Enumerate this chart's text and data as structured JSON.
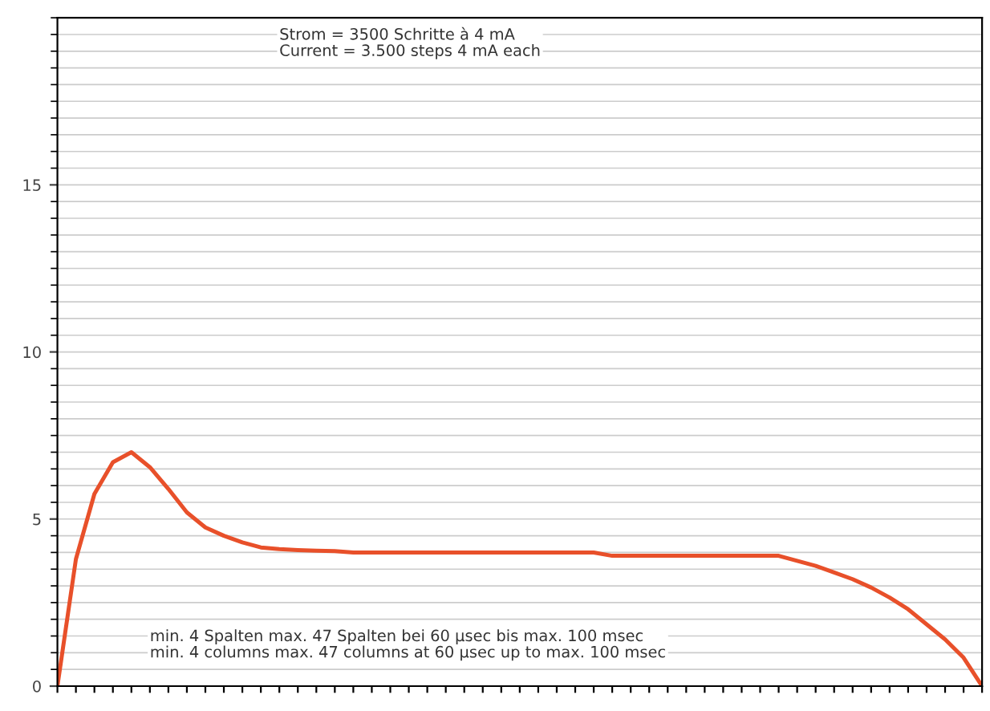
{
  "chart_data": {
    "type": "line",
    "categories": [
      null,
      null,
      null,
      null,
      null,
      null,
      null,
      null,
      null,
      null,
      null,
      null,
      null,
      null,
      null,
      null,
      null,
      null,
      null,
      null,
      null,
      null,
      null,
      null,
      null,
      null,
      null,
      null,
      null,
      null,
      null,
      null,
      null,
      null,
      null,
      null,
      null,
      null,
      null,
      null,
      null,
      null,
      null,
      null,
      null,
      null,
      null,
      null,
      null,
      null,
      null
    ],
    "series": [
      {
        "color": "#e8502a",
        "values": [
          0,
          3.8,
          5.75,
          6.7,
          7.0,
          6.55,
          5.9,
          5.2,
          4.75,
          4.5,
          4.3,
          4.15,
          4.1,
          4.07,
          4.05,
          4.04,
          4.0,
          4.0,
          4.0,
          4.0,
          4.0,
          4.0,
          4.0,
          4.0,
          4.0,
          4.0,
          4.0,
          4.0,
          4.0,
          4.0,
          3.9,
          3.9,
          3.9,
          3.9,
          3.9,
          3.9,
          3.9,
          3.9,
          3.9,
          3.9,
          3.75,
          3.6,
          3.4,
          3.2,
          2.95,
          2.65,
          2.3,
          1.85,
          1.4,
          0.85,
          0
        ]
      }
    ],
    "ylim": [
      0,
      20
    ],
    "yticks": [
      0,
      5,
      10,
      15
    ],
    "tick_labels": "y",
    "grid": "y",
    "annotations": [
      "Strom = 3500 Schritte à 4 mA\nCurrent = 3.500 steps 4 mA each",
      "min. 4 Spalten max. 47 Spalten bei 60 µsec bis max. 100 msec\nmin. 4 columns max. 47 columns at 60 µsec up to max. 100 msec"
    ]
  }
}
